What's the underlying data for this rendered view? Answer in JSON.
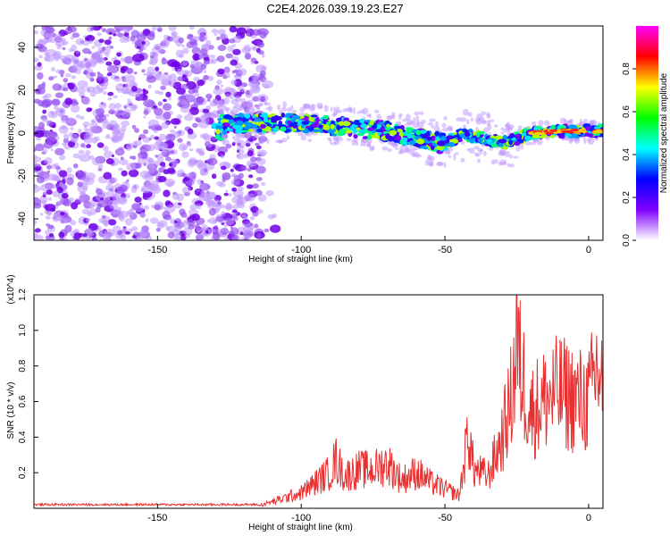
{
  "title": "C2E4.2026.039.19.23.E27",
  "chart_data": [
    {
      "type": "heatmap",
      "xlabel": "Height of straight line (km)",
      "ylabel": "Frequency (Hz)",
      "xlim": [
        -193,
        5
      ],
      "ylim": [
        -50,
        50
      ],
      "xticks": [
        -150,
        -100,
        -50,
        0
      ],
      "xtick_labels": [
        "-150",
        "-100",
        "-50",
        "0"
      ],
      "yticks": [
        -40,
        -20,
        0,
        20,
        40
      ],
      "ytick_labels": [
        "-40",
        "-20",
        "0",
        "20",
        "40"
      ],
      "noise_region_x": [
        -193,
        -113
      ],
      "signal_track": [
        {
          "x": -128,
          "f": 4
        },
        {
          "x": -110,
          "f": 5
        },
        {
          "x": -95,
          "f": 4
        },
        {
          "x": -80,
          "f": 2
        },
        {
          "x": -70,
          "f": 1
        },
        {
          "x": -60,
          "f": -2
        },
        {
          "x": -50,
          "f": -5
        },
        {
          "x": -45,
          "f": -1
        },
        {
          "x": -38,
          "f": -2
        },
        {
          "x": -30,
          "f": -5
        },
        {
          "x": -20,
          "f": 0
        },
        {
          "x": -10,
          "f": 1
        },
        {
          "x": 0,
          "f": 1
        },
        {
          "x": 5,
          "f": 1
        }
      ],
      "colorbar": {
        "label": "Normalized spectral amplitude",
        "range": [
          0,
          1
        ],
        "ticks": [
          0.0,
          0.2,
          0.4,
          0.6,
          0.8
        ],
        "tick_labels": [
          "0.0",
          "0.2",
          "0.4",
          "0.6",
          "0.8"
        ],
        "colors": [
          "#ffffff",
          "#8000ff",
          "#0000ff",
          "#00ffff",
          "#00ff00",
          "#ffff00",
          "#ff0000",
          "#ff00ff"
        ]
      }
    },
    {
      "type": "line",
      "xlabel": "Height of straight line (km)",
      "ylabel": "SNR (10 * v/v)",
      "multiplier_label": "(x10^4)",
      "xlim": [
        -193,
        5
      ],
      "ylim": [
        0,
        1.2
      ],
      "xticks": [
        -150,
        -100,
        -50,
        0
      ],
      "xtick_labels": [
        "-150",
        "-100",
        "-50",
        "0"
      ],
      "yticks": [
        0.2,
        0.4,
        0.6,
        0.8,
        1.0,
        1.2
      ],
      "ytick_labels": [
        "0.2",
        "0.4",
        "0.6",
        "0.8",
        "1.0",
        "1.2"
      ],
      "line_color": "#e83030",
      "series": [
        {
          "name": "SNR",
          "x": [
            -193,
            -150,
            -115,
            -110,
            -100,
            -95,
            -90,
            -88,
            -85,
            -80,
            -75,
            -70,
            -65,
            -60,
            -55,
            -50,
            -45,
            -43,
            -42,
            -40,
            -35,
            -30,
            -27,
            -25,
            -20,
            -15,
            -10,
            -5,
            0,
            3,
            5
          ],
          "values": [
            0.02,
            0.02,
            0.02,
            0.05,
            0.12,
            0.2,
            0.28,
            0.38,
            0.25,
            0.3,
            0.3,
            0.35,
            0.22,
            0.28,
            0.2,
            0.15,
            0.1,
            0.4,
            0.62,
            0.3,
            0.25,
            0.55,
            0.85,
            1.2,
            0.75,
            0.85,
            0.9,
            0.85,
            0.82,
            1.1,
            0.95
          ]
        }
      ]
    }
  ]
}
